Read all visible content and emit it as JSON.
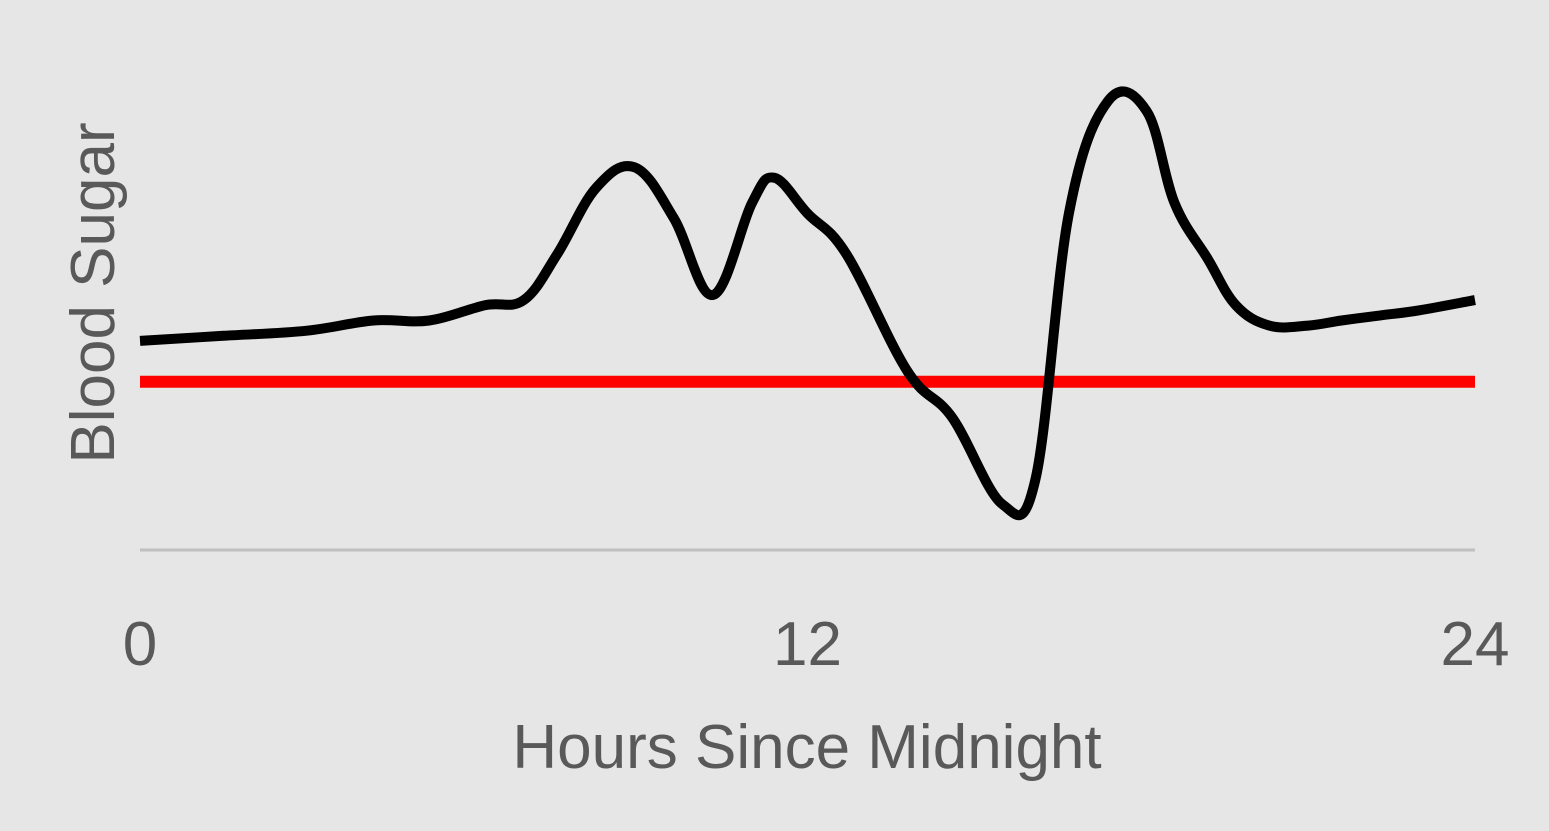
{
  "chart_data": {
    "type": "line",
    "title": "",
    "xlabel": "Hours Since Midnight",
    "ylabel": "Blood Sugar",
    "xlim": [
      0,
      24
    ],
    "ylim": [
      0,
      100
    ],
    "x_ticks": [
      "0",
      "12",
      "24"
    ],
    "y_ticks": [],
    "grid": false,
    "legend": "none",
    "series": [
      {
        "color": "#000000",
        "x": [
          0,
          1.5,
          3,
          4.2,
          5.2,
          6.2,
          6.9,
          7.5,
          8.2,
          8.9,
          9.6,
          10.3,
          11.0,
          11.4,
          12.0,
          12.7,
          13.8,
          14.6,
          15.5,
          16.1,
          16.7,
          17.4,
          18.1,
          18.6,
          19.2,
          19.7,
          20.3,
          21.0,
          21.6,
          22.3,
          23.0,
          24.0
        ],
        "values": [
          41,
          42,
          43,
          45,
          45,
          48,
          49,
          58,
          71,
          75,
          65,
          50,
          68,
          73,
          66,
          58,
          35,
          26,
          9,
          14,
          66,
          88,
          86,
          68,
          57,
          48,
          44,
          44,
          45,
          46,
          47,
          49
        ]
      },
      {
        "color": "#ff0000",
        "x": [
          0,
          24
        ],
        "values": [
          33,
          33
        ]
      }
    ]
  }
}
